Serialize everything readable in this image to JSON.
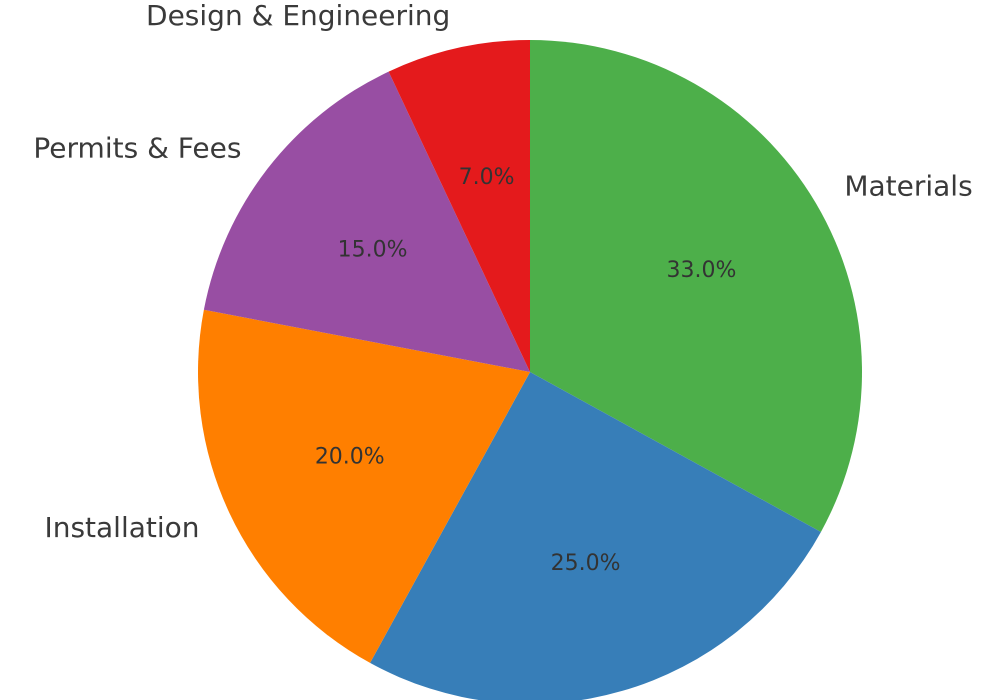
{
  "chart_data": {
    "type": "pie",
    "title": "",
    "start_angle_deg": 90,
    "direction": "clockwise",
    "slices": [
      {
        "label": "Materials",
        "value": 33.0,
        "pct_label": "33.0%",
        "color": "#4daf4a"
      },
      {
        "label": "",
        "value": 25.0,
        "pct_label": "25.0%",
        "color": "#377eb8"
      },
      {
        "label": "Installation",
        "value": 20.0,
        "pct_label": "20.0%",
        "color": "#ff7f00"
      },
      {
        "label": "Permits & Fees",
        "value": 15.0,
        "pct_label": "15.0%",
        "color": "#984ea3"
      },
      {
        "label": "Design & Engineering",
        "value": 7.0,
        "pct_label": "7.0%",
        "color": "#e41a1c"
      }
    ]
  }
}
